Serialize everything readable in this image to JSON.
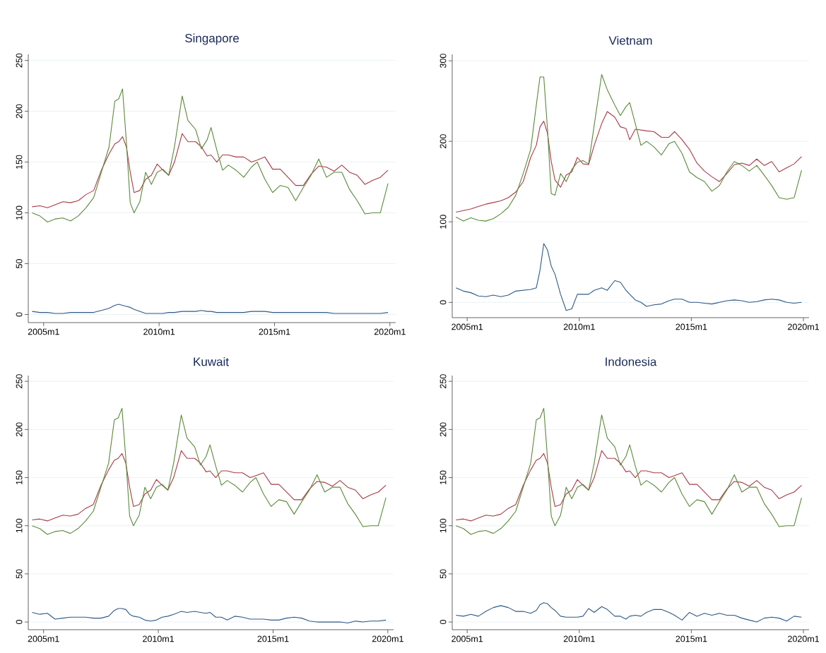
{
  "chart_data": [
    {
      "type": "line",
      "title": "Singapore",
      "xlim": [
        "2004-05",
        "2020-04"
      ],
      "ylim": [
        -8,
        256
      ],
      "grid": "y",
      "xticks": [
        {
          "value": "2005-01",
          "label": "2005m1"
        },
        {
          "value": "2010-01",
          "label": "2010m1"
        },
        {
          "value": "2015-01",
          "label": "2015m1"
        },
        {
          "value": "2020-01",
          "label": "2020m1"
        }
      ],
      "yticks": [
        0,
        50,
        100,
        150,
        200,
        250
      ],
      "x": [
        "2004-07",
        "2004-11",
        "2005-03",
        "2005-07",
        "2005-11",
        "2006-03",
        "2006-07",
        "2006-11",
        "2007-03",
        "2007-07",
        "2007-11",
        "2008-02",
        "2008-04",
        "2008-06",
        "2008-08",
        "2008-10",
        "2008-12",
        "2009-03",
        "2009-06",
        "2009-09",
        "2009-12",
        "2010-03",
        "2010-06",
        "2010-09",
        "2011-01",
        "2011-04",
        "2011-08",
        "2011-11",
        "2012-02",
        "2012-04",
        "2012-07",
        "2012-10",
        "2013-01",
        "2013-05",
        "2013-09",
        "2014-01",
        "2014-04",
        "2014-08",
        "2014-12",
        "2015-04",
        "2015-08",
        "2015-12",
        "2016-04",
        "2016-08",
        "2016-12",
        "2017-04",
        "2017-08",
        "2017-12",
        "2018-04",
        "2018-08",
        "2018-12",
        "2019-04",
        "2019-08",
        "2019-12"
      ],
      "series": [
        {
          "color": "#a83a45",
          "values": [
            106,
            107,
            105,
            108,
            111,
            110,
            112,
            118,
            122,
            142,
            158,
            168,
            170,
            175,
            165,
            140,
            120,
            122,
            133,
            137,
            148,
            142,
            137,
            150,
            178,
            170,
            170,
            165,
            156,
            157,
            150,
            157,
            157,
            155,
            155,
            150,
            152,
            155,
            143,
            143,
            135,
            127,
            127,
            138,
            146,
            145,
            141,
            147,
            140,
            137,
            128,
            132,
            135,
            142
          ]
        },
        {
          "color": "#5a8a3a",
          "values": [
            100,
            97,
            91,
            94,
            95,
            92,
            97,
            105,
            115,
            140,
            165,
            210,
            212,
            222,
            170,
            110,
            100,
            111,
            140,
            128,
            140,
            143,
            137,
            165,
            215,
            191,
            182,
            163,
            172,
            184,
            162,
            142,
            147,
            142,
            135,
            145,
            150,
            133,
            120,
            127,
            125,
            112,
            125,
            137,
            153,
            135,
            140,
            140,
            123,
            112,
            99,
            100,
            100,
            129
          ]
        },
        {
          "color": "#2e5a87",
          "values": [
            3,
            2,
            2,
            1,
            1,
            2,
            2,
            2,
            2,
            4,
            6,
            9,
            10,
            9,
            8,
            7,
            5,
            3,
            1,
            1,
            1,
            1,
            2,
            2,
            3,
            3,
            3,
            4,
            3,
            3,
            2,
            2,
            2,
            2,
            2,
            3,
            3,
            3,
            2,
            2,
            2,
            2,
            2,
            2,
            2,
            2,
            1,
            1,
            1,
            1,
            1,
            1,
            1,
            2
          ]
        }
      ]
    },
    {
      "type": "line",
      "title": "Vietnam",
      "xlim": [
        "2004-05",
        "2020-04"
      ],
      "ylim": [
        -19,
        308
      ],
      "grid": "y",
      "xticks": [
        {
          "value": "2005-01",
          "label": "2005m1"
        },
        {
          "value": "2010-01",
          "label": "2010m1"
        },
        {
          "value": "2015-01",
          "label": "2015m1"
        },
        {
          "value": "2020-01",
          "label": "2020m1"
        }
      ],
      "yticks": [
        0,
        100,
        200,
        300
      ],
      "x": [
        "2004-07",
        "2004-11",
        "2005-03",
        "2005-07",
        "2005-11",
        "2006-03",
        "2006-07",
        "2006-11",
        "2007-03",
        "2007-07",
        "2007-11",
        "2008-02",
        "2008-04",
        "2008-06",
        "2008-08",
        "2008-10",
        "2008-12",
        "2009-03",
        "2009-06",
        "2009-09",
        "2009-12",
        "2010-03",
        "2010-06",
        "2010-09",
        "2011-01",
        "2011-04",
        "2011-08",
        "2011-11",
        "2012-02",
        "2012-04",
        "2012-07",
        "2012-10",
        "2013-01",
        "2013-05",
        "2013-09",
        "2014-01",
        "2014-04",
        "2014-08",
        "2014-12",
        "2015-04",
        "2015-08",
        "2015-12",
        "2016-04",
        "2016-08",
        "2016-12",
        "2017-04",
        "2017-08",
        "2017-12",
        "2018-04",
        "2018-08",
        "2018-12",
        "2019-04",
        "2019-08",
        "2019-12"
      ],
      "series": [
        {
          "color": "#a83a45",
          "values": [
            112,
            114,
            116,
            119,
            122,
            124,
            126,
            130,
            137,
            150,
            180,
            195,
            218,
            225,
            210,
            175,
            152,
            143,
            158,
            162,
            180,
            172,
            171,
            195,
            222,
            237,
            230,
            218,
            216,
            202,
            215,
            214,
            213,
            212,
            205,
            205,
            212,
            202,
            190,
            173,
            163,
            156,
            150,
            160,
            171,
            173,
            170,
            178,
            170,
            175,
            162,
            167,
            172,
            181
          ]
        },
        {
          "color": "#5a8a3a",
          "values": [
            106,
            101,
            105,
            102,
            101,
            104,
            110,
            118,
            133,
            160,
            190,
            245,
            280,
            280,
            215,
            135,
            133,
            160,
            150,
            165,
            174,
            176,
            172,
            220,
            283,
            264,
            245,
            232,
            243,
            248,
            222,
            195,
            200,
            193,
            183,
            197,
            200,
            185,
            162,
            155,
            150,
            138,
            145,
            162,
            175,
            170,
            163,
            170,
            158,
            145,
            130,
            128,
            130,
            164
          ]
        },
        {
          "color": "#2e5a87",
          "values": [
            18,
            14,
            12,
            8,
            7,
            9,
            7,
            9,
            14,
            15,
            16,
            18,
            40,
            73,
            65,
            45,
            35,
            10,
            -10,
            -8,
            10,
            10,
            10,
            15,
            18,
            15,
            27,
            25,
            15,
            10,
            3,
            0,
            -5,
            -3,
            -2,
            2,
            4,
            4,
            0,
            0,
            -1,
            -2,
            0,
            2,
            3,
            2,
            0,
            1,
            3,
            4,
            3,
            0,
            -1,
            0
          ]
        }
      ]
    },
    {
      "type": "line",
      "title": "Kuwait",
      "xlim": [
        "2004-05",
        "2020-04"
      ],
      "ylim": [
        -8,
        256
      ],
      "grid": "y",
      "xticks": [
        {
          "value": "2005-01",
          "label": "2005m1"
        },
        {
          "value": "2010-01",
          "label": "2010m1"
        },
        {
          "value": "2015-01",
          "label": "2015m1"
        },
        {
          "value": "2020-01",
          "label": "2020m1"
        }
      ],
      "yticks": [
        0,
        50,
        100,
        150,
        200,
        250
      ],
      "x": [
        "2004-07",
        "2004-11",
        "2005-03",
        "2005-07",
        "2005-11",
        "2006-03",
        "2006-07",
        "2006-11",
        "2007-03",
        "2007-07",
        "2007-11",
        "2008-02",
        "2008-04",
        "2008-06",
        "2008-08",
        "2008-10",
        "2008-12",
        "2009-03",
        "2009-06",
        "2009-09",
        "2009-12",
        "2010-03",
        "2010-06",
        "2010-09",
        "2011-01",
        "2011-04",
        "2011-08",
        "2011-11",
        "2012-02",
        "2012-04",
        "2012-07",
        "2012-10",
        "2013-01",
        "2013-05",
        "2013-09",
        "2014-01",
        "2014-04",
        "2014-08",
        "2014-12",
        "2015-04",
        "2015-08",
        "2015-12",
        "2016-04",
        "2016-08",
        "2016-12",
        "2017-04",
        "2017-08",
        "2017-12",
        "2018-04",
        "2018-08",
        "2018-12",
        "2019-04",
        "2019-08",
        "2019-12"
      ],
      "series": [
        {
          "color": "#a83a45",
          "values": [
            106,
            107,
            105,
            108,
            111,
            110,
            112,
            118,
            122,
            142,
            158,
            168,
            170,
            175,
            165,
            140,
            120,
            122,
            133,
            137,
            148,
            142,
            137,
            150,
            178,
            170,
            170,
            165,
            156,
            157,
            150,
            157,
            157,
            155,
            155,
            150,
            152,
            155,
            143,
            143,
            135,
            127,
            127,
            138,
            146,
            145,
            141,
            147,
            140,
            137,
            128,
            132,
            135,
            142
          ]
        },
        {
          "color": "#5a8a3a",
          "values": [
            100,
            97,
            91,
            94,
            95,
            92,
            97,
            105,
            115,
            140,
            165,
            210,
            212,
            222,
            170,
            110,
            100,
            111,
            140,
            128,
            140,
            143,
            137,
            165,
            215,
            191,
            182,
            163,
            172,
            184,
            162,
            142,
            147,
            142,
            135,
            145,
            150,
            133,
            120,
            127,
            125,
            112,
            125,
            137,
            153,
            135,
            140,
            140,
            123,
            112,
            99,
            100,
            100,
            129
          ]
        },
        {
          "color": "#2e5a87",
          "values": [
            10,
            8,
            9,
            3,
            4,
            5,
            5,
            5,
            4,
            4,
            6,
            12,
            14,
            14,
            13,
            8,
            6,
            5,
            2,
            1,
            2,
            5,
            6,
            8,
            11,
            10,
            11,
            10,
            9,
            10,
            5,
            5,
            2,
            6,
            5,
            3,
            3,
            3,
            2,
            2,
            4,
            5,
            4,
            1,
            0,
            0,
            0,
            0,
            -1,
            1,
            0,
            1,
            1,
            2
          ]
        }
      ]
    },
    {
      "type": "line",
      "title": "Indonesia",
      "xlim": [
        "2004-05",
        "2020-04"
      ],
      "ylim": [
        -8,
        256
      ],
      "grid": "y",
      "xticks": [
        {
          "value": "2005-01",
          "label": "2005m1"
        },
        {
          "value": "2010-01",
          "label": "2010m1"
        },
        {
          "value": "2015-01",
          "label": "2015m1"
        },
        {
          "value": "2020-01",
          "label": "2020m1"
        }
      ],
      "yticks": [
        0,
        50,
        100,
        150,
        200,
        250
      ],
      "x": [
        "2004-07",
        "2004-11",
        "2005-03",
        "2005-07",
        "2005-11",
        "2006-03",
        "2006-07",
        "2006-11",
        "2007-03",
        "2007-07",
        "2007-11",
        "2008-02",
        "2008-04",
        "2008-06",
        "2008-08",
        "2008-10",
        "2008-12",
        "2009-03",
        "2009-06",
        "2009-09",
        "2009-12",
        "2010-03",
        "2010-06",
        "2010-09",
        "2011-01",
        "2011-04",
        "2011-08",
        "2011-11",
        "2012-02",
        "2012-04",
        "2012-07",
        "2012-10",
        "2013-01",
        "2013-05",
        "2013-09",
        "2014-01",
        "2014-04",
        "2014-08",
        "2014-12",
        "2015-04",
        "2015-08",
        "2015-12",
        "2016-04",
        "2016-08",
        "2016-12",
        "2017-04",
        "2017-08",
        "2017-12",
        "2018-04",
        "2018-08",
        "2018-12",
        "2019-04",
        "2019-08",
        "2019-12"
      ],
      "series": [
        {
          "color": "#a83a45",
          "values": [
            106,
            107,
            105,
            108,
            111,
            110,
            112,
            118,
            122,
            142,
            158,
            168,
            170,
            175,
            165,
            140,
            120,
            122,
            133,
            137,
            148,
            142,
            137,
            150,
            178,
            170,
            170,
            165,
            156,
            157,
            150,
            157,
            157,
            155,
            155,
            150,
            152,
            155,
            143,
            143,
            135,
            127,
            127,
            138,
            146,
            145,
            141,
            147,
            140,
            137,
            128,
            132,
            135,
            142
          ]
        },
        {
          "color": "#5a8a3a",
          "values": [
            100,
            97,
            91,
            94,
            95,
            92,
            97,
            105,
            115,
            140,
            165,
            210,
            212,
            222,
            170,
            110,
            100,
            111,
            140,
            128,
            140,
            143,
            137,
            165,
            215,
            191,
            182,
            163,
            172,
            184,
            162,
            142,
            147,
            142,
            135,
            145,
            150,
            133,
            120,
            127,
            125,
            112,
            125,
            137,
            153,
            135,
            140,
            140,
            123,
            112,
            99,
            100,
            100,
            129
          ]
        },
        {
          "color": "#2e5a87",
          "values": [
            7,
            6,
            8,
            6,
            11,
            15,
            17,
            15,
            11,
            11,
            9,
            12,
            18,
            20,
            19,
            15,
            12,
            6,
            5,
            5,
            5,
            6,
            14,
            10,
            16,
            13,
            6,
            6,
            3,
            6,
            7,
            6,
            10,
            13,
            13,
            10,
            7,
            2,
            10,
            6,
            9,
            7,
            9,
            7,
            7,
            4,
            2,
            0,
            4,
            5,
            4,
            1,
            6,
            5
          ]
        }
      ]
    }
  ]
}
